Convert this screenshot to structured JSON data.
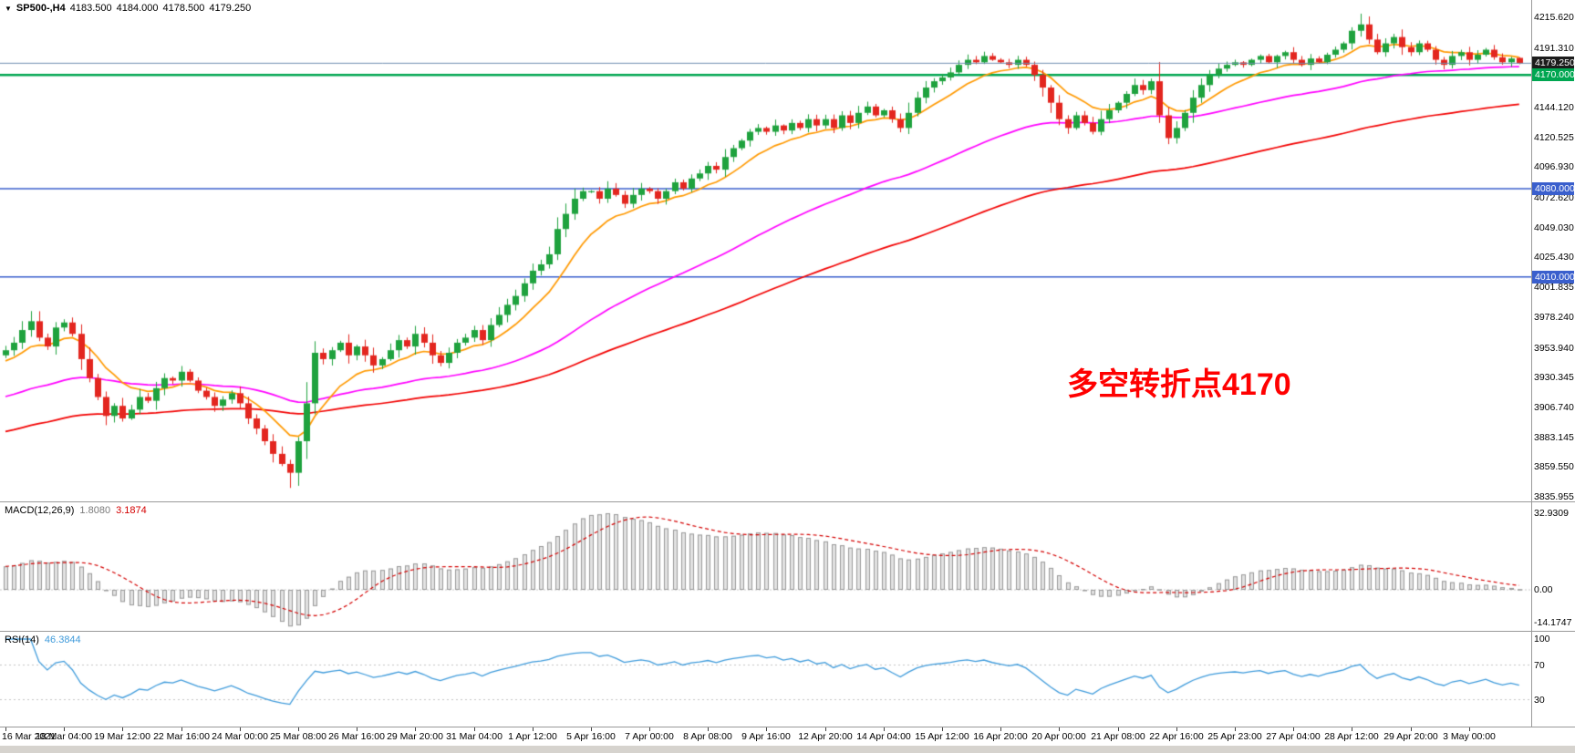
{
  "header": {
    "collapse_icon": "▼",
    "symbol": "SP500-,H4",
    "open": "4183.500",
    "high": "4184.000",
    "low": "4178.500",
    "close": "4179.250"
  },
  "annotation": {
    "text": "多空转折点4170",
    "color": "#ff0000"
  },
  "colors": {
    "up": "#1fa23e",
    "down": "#e3261f",
    "macd_hist_fill": "#e2e2e2",
    "macd_hist_stroke": "#9a9a9a",
    "macd_signal": "#d40000",
    "rsi_line": "#3f9bdb"
  },
  "price_scale": {
    "badges": [
      {
        "name": "bid-price-badge",
        "text": "4179.250",
        "value": 4179.25,
        "bg": "#1c1c1c"
      },
      {
        "name": "green-line-badge",
        "text": "4170.000",
        "value": 4170.0,
        "bg": "#00a651"
      },
      {
        "name": "blue-line-badge-1",
        "text": "4080.000",
        "value": 4080.0,
        "bg": "#3a5fcd"
      },
      {
        "name": "blue-line-badge-2",
        "text": "4010.000",
        "value": 4010.0,
        "bg": "#3a5fcd"
      }
    ]
  },
  "chart_data": {
    "type": "candlestick",
    "symbol": "SP500-",
    "timeframe": "H4",
    "ylim": [
      3835.955,
      4215.62
    ],
    "y_ticks": [
      "4215.620",
      "4191.310",
      "4144.120",
      "4120.525",
      "4096.930",
      "4072.620",
      "4049.030",
      "4025.430",
      "4001.835",
      "3978.240",
      "3953.940",
      "3930.345",
      "3906.740",
      "3883.145",
      "3859.550",
      "3835.955"
    ],
    "bars_per_x_tick": 7,
    "closes": [
      3952,
      3958,
      3968,
      3975,
      3962,
      3955,
      3970,
      3974,
      3965,
      3945,
      3930,
      3915,
      3900,
      3908,
      3898,
      3905,
      3915,
      3912,
      3922,
      3930,
      3928,
      3935,
      3928,
      3920,
      3915,
      3908,
      3913,
      3918,
      3910,
      3898,
      3890,
      3880,
      3870,
      3862,
      3855,
      3880,
      3910,
      3950,
      3945,
      3952,
      3958,
      3948,
      3955,
      3948,
      3940,
      3945,
      3952,
      3960,
      3955,
      3965,
      3958,
      3948,
      3942,
      3950,
      3958,
      3962,
      3968,
      3960,
      3972,
      3980,
      3988,
      3995,
      4005,
      4015,
      4020,
      4028,
      4048,
      4060,
      4072,
      4078,
      4078,
      4072,
      4080,
      4075,
      4068,
      4075,
      4080,
      4078,
      4072,
      4078,
      4085,
      4080,
      4088,
      4092,
      4098,
      4095,
      4105,
      4112,
      4118,
      4125,
      4128,
      4125,
      4130,
      4126,
      4132,
      4128,
      4135,
      4130,
      4135,
      4128,
      4138,
      4132,
      4140,
      4145,
      4138,
      4142,
      4135,
      4128,
      4140,
      4152,
      4160,
      4165,
      4168,
      4172,
      4178,
      4182,
      4180,
      4185,
      4182,
      4180,
      4178,
      4182,
      4178,
      4170,
      4160,
      4148,
      4135,
      4128,
      4138,
      4132,
      4125,
      4135,
      4142,
      4148,
      4155,
      4162,
      4158,
      4165,
      4138,
      4120,
      4128,
      4140,
      4152,
      4162,
      4170,
      4175,
      4178,
      4180,
      4178,
      4182,
      4185,
      4180,
      4185,
      4188,
      4182,
      4178,
      4183,
      4180,
      4186,
      4190,
      4195,
      4205,
      4210,
      4198,
      4188,
      4195,
      4200,
      4192,
      4188,
      4195,
      4190,
      4182,
      4178,
      4185,
      4188,
      4182,
      4186,
      4190,
      4184,
      4180,
      4183,
      4179.25
    ],
    "last_bar_ohlc": [
      4183.5,
      4184.0,
      4178.5,
      4179.25
    ],
    "wick_overrides": {
      "high": {
        "3": 3983.0,
        "162": 4218.5
      },
      "low": {
        "34": 3843.0
      }
    },
    "horizontal_lines": [
      {
        "name": "green-support-line",
        "value": 4170.0,
        "color": "#00a651",
        "width": 2.5
      },
      {
        "name": "blue-level-line-1",
        "value": 4080.0,
        "color": "#3a5fcd",
        "width": 1.5
      },
      {
        "name": "blue-level-line-2",
        "value": 4010.0,
        "color": "#3a5fcd",
        "width": 1.5
      }
    ],
    "bid_line": {
      "value": 4179.25,
      "color": "#6f8fb0"
    },
    "moving_averages": [
      {
        "name": "slow-ma",
        "period": 96,
        "color": "#f20000"
      },
      {
        "name": "mid-ma",
        "period": 48,
        "color": "#ff00ff"
      },
      {
        "name": "fast-ma",
        "period": 10,
        "color": "#ff9900"
      }
    ]
  },
  "macd": {
    "label": "MACD(12,26,9)",
    "value": "1.8080",
    "signal_value": "3.1874",
    "fast": 12,
    "slow": 26,
    "signal": 9,
    "scale_ticks": [
      "32.9309",
      "0.00",
      "-14.1747"
    ]
  },
  "rsi": {
    "label": "RSI(14)",
    "value": "46.3844",
    "period": 14,
    "scale_ticks": [
      "100",
      "70",
      "30"
    ],
    "levels": [
      70,
      30
    ]
  },
  "time_axis": {
    "labels": [
      "16 Mar 2021",
      "18 Mar 04:00",
      "19 Mar 12:00",
      "22 Mar 16:00",
      "24 Mar 00:00",
      "25 Mar 08:00",
      "26 Mar 16:00",
      "29 Mar 20:00",
      "31 Mar 04:00",
      "1 Apr 12:00",
      "5 Apr 16:00",
      "7 Apr 00:00",
      "8 Apr 08:00",
      "9 Apr 16:00",
      "12 Apr 20:00",
      "14 Apr 04:00",
      "15 Apr 12:00",
      "16 Apr 20:00",
      "20 Apr 00:00",
      "21 Apr 08:00",
      "22 Apr 16:00",
      "25 Apr 23:00",
      "27 Apr 04:00",
      "28 Apr 12:00",
      "29 Apr 20:00",
      "3 May 00:00"
    ]
  }
}
